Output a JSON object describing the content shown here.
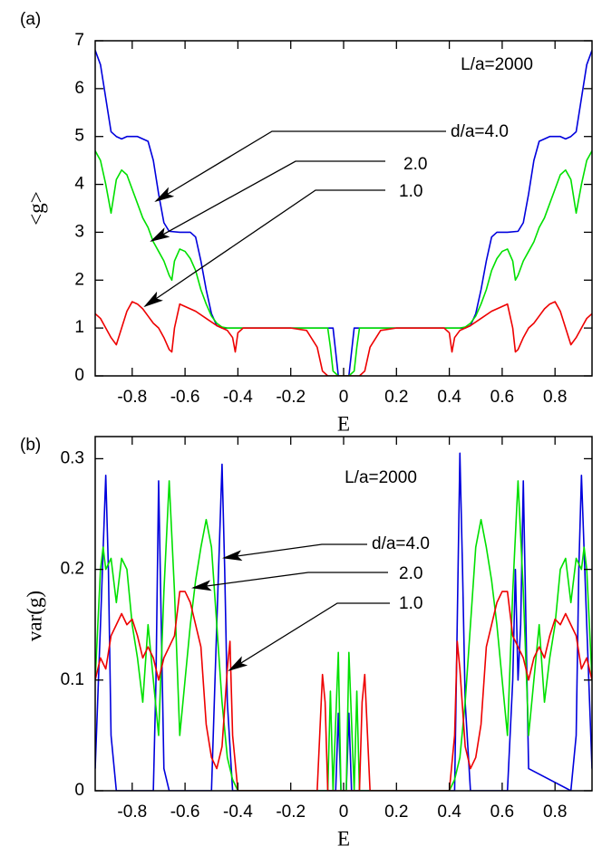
{
  "chart_data": [
    {
      "type": "line",
      "panel": "(a)",
      "xlabel": "E",
      "ylabel": "<g>",
      "note": "L/a=2000",
      "xlim": [
        -0.94,
        0.94
      ],
      "ylim": [
        0,
        7
      ],
      "xticks": [
        -0.8,
        -0.6,
        -0.4,
        -0.2,
        0,
        0.2,
        0.4,
        0.6,
        0.8
      ],
      "yticks": [
        0,
        1,
        2,
        3,
        4,
        5,
        6,
        7
      ],
      "series": [
        {
          "name": "d/a=4.0",
          "color": "#0000dd",
          "x": [
            -0.94,
            -0.92,
            -0.9,
            -0.88,
            -0.86,
            -0.84,
            -0.82,
            -0.78,
            -0.74,
            -0.72,
            -0.7,
            -0.68,
            -0.66,
            -0.62,
            -0.58,
            -0.56,
            -0.54,
            -0.52,
            -0.5,
            -0.48,
            -0.46,
            -0.4,
            -0.2,
            -0.04,
            -0.03,
            -0.02,
            0.02,
            0.03,
            0.04,
            0.2,
            0.4,
            0.46,
            0.48,
            0.5,
            0.52,
            0.54,
            0.56,
            0.58,
            0.62,
            0.66,
            0.68,
            0.7,
            0.72,
            0.74,
            0.78,
            0.82,
            0.84,
            0.86,
            0.88,
            0.9,
            0.92,
            0.94
          ],
          "values": [
            6.8,
            6.5,
            5.8,
            5.1,
            5.0,
            4.95,
            5.0,
            5.0,
            4.9,
            4.5,
            3.8,
            3.2,
            3.02,
            3.0,
            3.0,
            2.9,
            2.4,
            1.8,
            1.3,
            1.05,
            1.0,
            1.0,
            1.0,
            1.0,
            0.5,
            0,
            0,
            0.5,
            1.0,
            1.0,
            1.0,
            1.0,
            1.05,
            1.3,
            1.8,
            2.4,
            2.9,
            3.0,
            3.0,
            3.02,
            3.2,
            3.8,
            4.5,
            4.9,
            5.0,
            5.0,
            4.95,
            5.0,
            5.1,
            5.8,
            6.5,
            6.8
          ]
        },
        {
          "name": "2.0",
          "color": "#00e000",
          "x": [
            -0.94,
            -0.92,
            -0.9,
            -0.88,
            -0.86,
            -0.84,
            -0.82,
            -0.8,
            -0.78,
            -0.76,
            -0.74,
            -0.72,
            -0.7,
            -0.68,
            -0.66,
            -0.65,
            -0.64,
            -0.62,
            -0.6,
            -0.58,
            -0.56,
            -0.54,
            -0.52,
            -0.5,
            -0.48,
            -0.46,
            -0.44,
            -0.4,
            -0.06,
            -0.05,
            -0.04,
            -0.02,
            0,
            0.02,
            0.04,
            0.05,
            0.06,
            0.4,
            0.44,
            0.46,
            0.48,
            0.5,
            0.52,
            0.54,
            0.56,
            0.58,
            0.6,
            0.62,
            0.64,
            0.65,
            0.66,
            0.68,
            0.7,
            0.72,
            0.74,
            0.76,
            0.78,
            0.8,
            0.82,
            0.84,
            0.86,
            0.88,
            0.9,
            0.92,
            0.94
          ],
          "values": [
            4.7,
            4.5,
            4.0,
            3.4,
            4.1,
            4.3,
            4.2,
            3.9,
            3.6,
            3.3,
            3.1,
            2.8,
            2.6,
            2.4,
            2.1,
            2.0,
            2.4,
            2.65,
            2.6,
            2.45,
            2.2,
            1.8,
            1.5,
            1.25,
            1.1,
            1.02,
            1.0,
            1.0,
            1.0,
            0.6,
            0.1,
            0,
            0,
            0,
            0.1,
            0.6,
            1.0,
            1.0,
            1.0,
            1.02,
            1.1,
            1.25,
            1.5,
            1.8,
            2.2,
            2.45,
            2.6,
            2.65,
            2.4,
            2.0,
            2.1,
            2.4,
            2.6,
            2.8,
            3.1,
            3.3,
            3.6,
            3.9,
            4.2,
            4.3,
            4.1,
            3.4,
            4.0,
            4.5,
            4.7
          ]
        },
        {
          "name": "1.0",
          "color": "#ee0000",
          "x": [
            -0.94,
            -0.92,
            -0.9,
            -0.88,
            -0.86,
            -0.84,
            -0.82,
            -0.8,
            -0.78,
            -0.76,
            -0.74,
            -0.72,
            -0.7,
            -0.68,
            -0.66,
            -0.65,
            -0.64,
            -0.62,
            -0.6,
            -0.56,
            -0.52,
            -0.48,
            -0.44,
            -0.42,
            -0.41,
            -0.4,
            -0.38,
            -0.2,
            -0.14,
            -0.1,
            -0.08,
            -0.06,
            0.06,
            0.08,
            0.1,
            0.14,
            0.2,
            0.38,
            0.4,
            0.41,
            0.42,
            0.44,
            0.48,
            0.52,
            0.56,
            0.6,
            0.62,
            0.64,
            0.65,
            0.66,
            0.68,
            0.7,
            0.72,
            0.74,
            0.76,
            0.78,
            0.8,
            0.82,
            0.84,
            0.86,
            0.88,
            0.9,
            0.92,
            0.94
          ],
          "values": [
            1.3,
            1.2,
            1.0,
            0.8,
            0.65,
            1.0,
            1.35,
            1.55,
            1.5,
            1.4,
            1.25,
            1.1,
            1.0,
            0.8,
            0.55,
            0.5,
            1.0,
            1.5,
            1.45,
            1.35,
            1.2,
            1.05,
            0.95,
            0.8,
            0.5,
            0.9,
            1.0,
            1.0,
            0.95,
            0.6,
            0.1,
            0,
            0,
            0.1,
            0.6,
            0.95,
            1.0,
            1.0,
            0.9,
            0.5,
            0.8,
            0.95,
            1.05,
            1.2,
            1.35,
            1.45,
            1.5,
            1.0,
            0.5,
            0.55,
            0.8,
            1.0,
            1.1,
            1.25,
            1.4,
            1.5,
            1.55,
            1.35,
            1.0,
            0.65,
            0.8,
            1.0,
            1.2,
            1.3
          ]
        }
      ]
    },
    {
      "type": "line",
      "panel": "(b)",
      "xlabel": "E",
      "ylabel": "var(g)",
      "note": "L/a=2000",
      "xlim": [
        -0.94,
        0.94
      ],
      "ylim": [
        0,
        0.32
      ],
      "xticks": [
        -0.8,
        -0.6,
        -0.4,
        -0.2,
        0,
        0.2,
        0.4,
        0.6,
        0.8
      ],
      "yticks": [
        0,
        0.1,
        0.2,
        0.3
      ],
      "series": [
        {
          "name": "d/a=4.0",
          "color": "#0000dd",
          "x": [
            -0.94,
            -0.92,
            -0.9,
            -0.89,
            -0.88,
            -0.86,
            -0.72,
            -0.71,
            -0.7,
            -0.69,
            -0.68,
            -0.66,
            -0.5,
            -0.48,
            -0.46,
            -0.45,
            -0.44,
            -0.42,
            -0.03,
            -0.02,
            -0.01,
            0.01,
            0.02,
            0.03,
            0.42,
            0.44,
            0.45,
            0.46,
            0.48,
            0.62,
            0.64,
            0.65,
            0.66,
            0.67,
            0.68,
            0.69,
            0.7,
            0.86,
            0.88,
            0.89,
            0.9,
            0.92,
            0.94
          ],
          "values": [
            0.02,
            0.15,
            0.285,
            0.2,
            0.05,
            0,
            0,
            0.1,
            0.28,
            0.15,
            0.02,
            0,
            0,
            0.15,
            0.295,
            0.2,
            0.08,
            0,
            0,
            0.07,
            0,
            0,
            0.07,
            0,
            0,
            0.305,
            0.2,
            0.08,
            0,
            0,
            0.1,
            0.2,
            0.1,
            0.15,
            0.28,
            0.15,
            0.02,
            0,
            0.05,
            0.2,
            0.285,
            0.15,
            0.02
          ]
        },
        {
          "name": "2.0",
          "color": "#00e000",
          "x": [
            -0.94,
            -0.92,
            -0.91,
            -0.9,
            -0.88,
            -0.86,
            -0.84,
            -0.82,
            -0.8,
            -0.78,
            -0.76,
            -0.74,
            -0.72,
            -0.7,
            -0.68,
            -0.66,
            -0.64,
            -0.62,
            -0.6,
            -0.58,
            -0.56,
            -0.54,
            -0.52,
            -0.5,
            -0.48,
            -0.46,
            -0.44,
            -0.42,
            -0.4,
            -0.06,
            -0.05,
            -0.04,
            -0.02,
            -0.01,
            0.01,
            0.02,
            0.04,
            0.05,
            0.06,
            0.4,
            0.42,
            0.44,
            0.46,
            0.48,
            0.5,
            0.52,
            0.54,
            0.56,
            0.58,
            0.6,
            0.62,
            0.64,
            0.66,
            0.68,
            0.7,
            0.72,
            0.74,
            0.76,
            0.78,
            0.8,
            0.82,
            0.84,
            0.86,
            0.88,
            0.9,
            0.91,
            0.92,
            0.94
          ],
          "values": [
            0.1,
            0.2,
            0.22,
            0.2,
            0.21,
            0.17,
            0.21,
            0.2,
            0.15,
            0.12,
            0.08,
            0.15,
            0.1,
            0.05,
            0.18,
            0.28,
            0.18,
            0.05,
            0.1,
            0.15,
            0.19,
            0.22,
            0.245,
            0.22,
            0.15,
            0.08,
            0.03,
            0.01,
            0,
            0,
            0.09,
            0,
            0.125,
            0,
            0,
            0.125,
            0,
            0.09,
            0,
            0,
            0.01,
            0.03,
            0.08,
            0.15,
            0.22,
            0.245,
            0.22,
            0.19,
            0.15,
            0.1,
            0.05,
            0.18,
            0.28,
            0.18,
            0.05,
            0.1,
            0.15,
            0.08,
            0.12,
            0.15,
            0.2,
            0.21,
            0.17,
            0.21,
            0.2,
            0.22,
            0.2,
            0.1
          ]
        },
        {
          "name": "1.0",
          "color": "#ee0000",
          "x": [
            -0.94,
            -0.92,
            -0.9,
            -0.88,
            -0.86,
            -0.84,
            -0.82,
            -0.8,
            -0.78,
            -0.76,
            -0.74,
            -0.72,
            -0.7,
            -0.68,
            -0.66,
            -0.64,
            -0.62,
            -0.6,
            -0.58,
            -0.56,
            -0.54,
            -0.52,
            -0.5,
            -0.48,
            -0.46,
            -0.44,
            -0.43,
            -0.42,
            -0.4,
            -0.1,
            -0.08,
            -0.07,
            -0.06,
            0.06,
            0.07,
            0.08,
            0.1,
            0.4,
            0.42,
            0.43,
            0.44,
            0.46,
            0.48,
            0.5,
            0.52,
            0.54,
            0.56,
            0.58,
            0.6,
            0.62,
            0.64,
            0.66,
            0.68,
            0.7,
            0.72,
            0.74,
            0.76,
            0.78,
            0.8,
            0.82,
            0.84,
            0.86,
            0.88,
            0.9,
            0.92,
            0.94
          ],
          "values": [
            0.1,
            0.12,
            0.11,
            0.14,
            0.15,
            0.16,
            0.15,
            0.155,
            0.14,
            0.12,
            0.13,
            0.12,
            0.1,
            0.12,
            0.13,
            0.14,
            0.18,
            0.18,
            0.17,
            0.15,
            0.13,
            0.06,
            0.03,
            0.02,
            0.04,
            0.11,
            0.135,
            0.05,
            0,
            0,
            0.105,
            0.08,
            0,
            0,
            0.08,
            0.105,
            0,
            0,
            0.05,
            0.135,
            0.11,
            0.04,
            0.02,
            0.03,
            0.06,
            0.13,
            0.15,
            0.17,
            0.18,
            0.18,
            0.14,
            0.13,
            0.12,
            0.1,
            0.12,
            0.13,
            0.12,
            0.14,
            0.155,
            0.15,
            0.16,
            0.15,
            0.14,
            0.11,
            0.12,
            0.1
          ]
        }
      ]
    }
  ]
}
